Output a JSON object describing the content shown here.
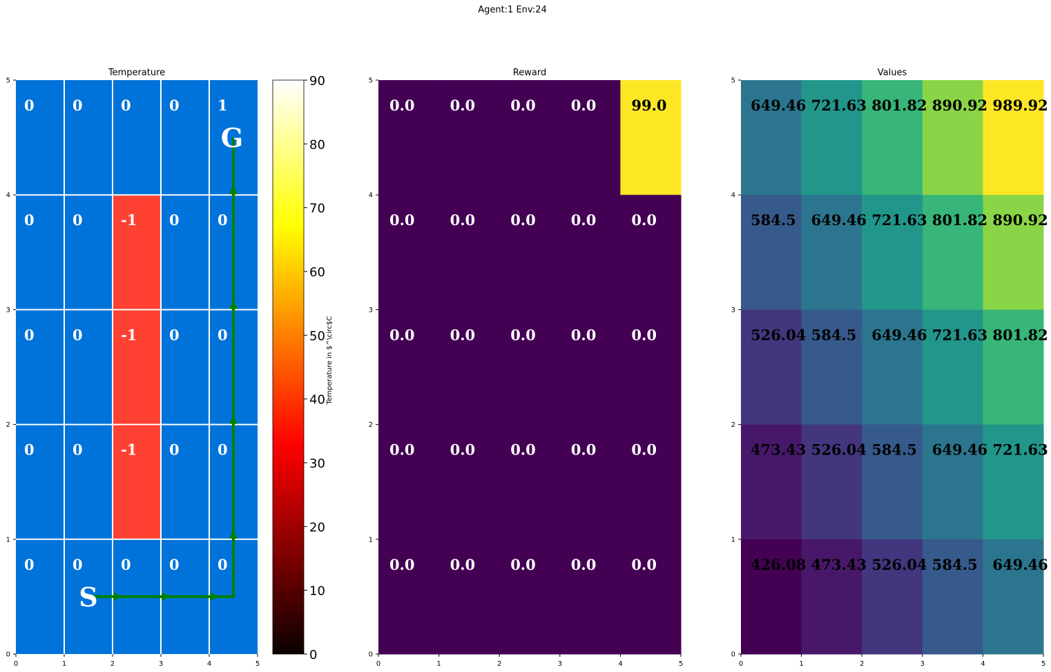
{
  "suptitle": "Agent:1 Env:24",
  "colors": {
    "cell_blue": "#0073DA",
    "cell_red": "#FF4133",
    "cell_green": "#2ECC3A",
    "grid_white": "#FFFFFF",
    "path_green": "#008000",
    "reward_low": "#440154",
    "reward_high": "#FDE725"
  },
  "chart_data": [
    {
      "type": "heatmap",
      "title": "Temperature",
      "xlim": [
        0,
        5
      ],
      "ylim": [
        0,
        5
      ],
      "xticks": [
        "0",
        "1",
        "2",
        "3",
        "4",
        "5"
      ],
      "yticks": [
        "0",
        "1",
        "2",
        "3",
        "4",
        "5"
      ],
      "rows_top_to_bottom": [
        [
          "0",
          "0",
          "0",
          "0",
          "1"
        ],
        [
          "0",
          "0",
          "-1",
          "0",
          "0"
        ],
        [
          "0",
          "0",
          "-1",
          "0",
          "0"
        ],
        [
          "0",
          "0",
          "-1",
          "0",
          "0"
        ],
        [
          "0",
          "0",
          "0",
          "0",
          "0"
        ]
      ],
      "start_label": "S",
      "goal_label": "G",
      "start": [
        1.5,
        0.5
      ],
      "goal": [
        4.5,
        4.5
      ],
      "path": [
        [
          1.5,
          0.5
        ],
        [
          2.5,
          0.5
        ],
        [
          3.5,
          0.5
        ],
        [
          4.5,
          0.5
        ],
        [
          4.5,
          1.5
        ],
        [
          4.5,
          2.5
        ],
        [
          4.5,
          3.5
        ],
        [
          4.5,
          4.5
        ]
      ],
      "colorbar": {
        "label": "Temperature in $^\\circ$C",
        "min": 0,
        "max": 90,
        "ticks": [
          "0",
          "10",
          "20",
          "30",
          "40",
          "50",
          "60",
          "70",
          "80",
          "90"
        ],
        "colormap": "hot"
      }
    },
    {
      "type": "heatmap",
      "title": "Reward",
      "xlim": [
        0,
        5
      ],
      "ylim": [
        0,
        5
      ],
      "xticks": [
        "0",
        "1",
        "2",
        "3",
        "4",
        "5"
      ],
      "yticks": [
        "0",
        "1",
        "2",
        "3",
        "4",
        "5"
      ],
      "rows_top_to_bottom": [
        [
          "0.0",
          "0.0",
          "0.0",
          "0.0",
          "99.0"
        ],
        [
          "0.0",
          "0.0",
          "0.0",
          "0.0",
          "0.0"
        ],
        [
          "0.0",
          "0.0",
          "0.0",
          "0.0",
          "0.0"
        ],
        [
          "0.0",
          "0.0",
          "0.0",
          "0.0",
          "0.0"
        ],
        [
          "0.0",
          "0.0",
          "0.0",
          "0.0",
          "0.0"
        ]
      ],
      "colormap": "viridis",
      "min": 0,
      "max": 99
    },
    {
      "type": "heatmap",
      "title": "Values",
      "xlim": [
        0,
        5
      ],
      "ylim": [
        0,
        5
      ],
      "xticks": [
        "0",
        "1",
        "2",
        "3",
        "4",
        "5"
      ],
      "yticks": [
        "0",
        "1",
        "2",
        "3",
        "4",
        "5"
      ],
      "rows_top_to_bottom": [
        [
          "649.46",
          "721.63",
          "801.82",
          "890.92",
          "989.92"
        ],
        [
          "584.5",
          "649.46",
          "721.63",
          "801.82",
          "890.92"
        ],
        [
          "526.04",
          "584.5",
          "649.46",
          "721.63",
          "801.82"
        ],
        [
          "473.43",
          "526.04",
          "584.5",
          "649.46",
          "721.63"
        ],
        [
          "426.08",
          "473.43",
          "526.04",
          "584.5",
          "649.46"
        ]
      ],
      "colormap": "viridis",
      "min": 426.08,
      "max": 989.92
    }
  ]
}
